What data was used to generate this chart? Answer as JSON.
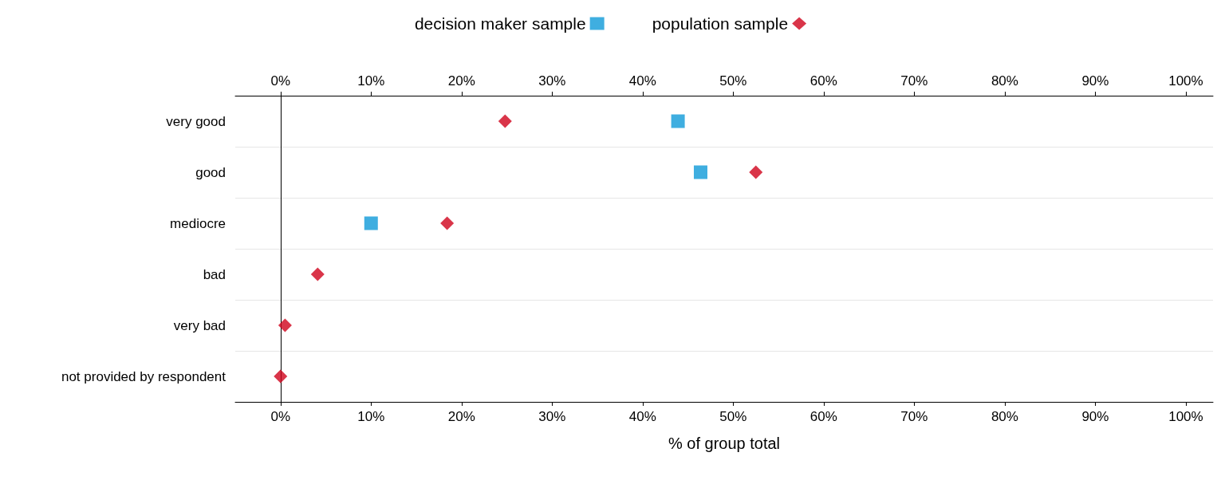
{
  "chart_data": {
    "type": "scatter",
    "orientation": "horizontal",
    "xlabel": "% of group total",
    "categories": [
      "very good",
      "good",
      "mediocre",
      "bad",
      "very bad",
      "not provided by respondent"
    ],
    "series": [
      {
        "name": "decision maker sample",
        "color": "#0f9ad8",
        "marker": "square",
        "values": [
          43.9,
          46.4,
          10.0,
          null,
          null,
          null
        ]
      },
      {
        "name": "population sample",
        "color": "#d0021b",
        "marker": "diamond",
        "values": [
          24.8,
          52.5,
          18.4,
          4.1,
          0.5,
          0
        ]
      }
    ],
    "xlim": [
      -5,
      103
    ],
    "xticks": [
      {
        "value": 0,
        "label": "0%"
      },
      {
        "value": 10,
        "label": "10%"
      },
      {
        "value": 20,
        "label": "20%"
      },
      {
        "value": 30,
        "label": "30%"
      },
      {
        "value": 40,
        "label": "40%"
      },
      {
        "value": 50,
        "label": "50%"
      },
      {
        "value": 60,
        "label": "60%"
      },
      {
        "value": 70,
        "label": "70%"
      },
      {
        "value": 80,
        "label": "80%"
      },
      {
        "value": 90,
        "label": "90%"
      },
      {
        "value": 100,
        "label": "100%"
      }
    ],
    "x2lim": [
      -5,
      103
    ],
    "x2ticks": [
      {
        "value": 0,
        "label": "0%"
      },
      {
        "value": 10,
        "label": "10%"
      },
      {
        "value": 20,
        "label": "20%"
      },
      {
        "value": 30,
        "label": "30%"
      },
      {
        "value": 40,
        "label": "40%"
      },
      {
        "value": 50,
        "label": "50%"
      },
      {
        "value": 60,
        "label": "60%"
      },
      {
        "value": 70,
        "label": "70%"
      },
      {
        "value": 80,
        "label": "80%"
      },
      {
        "value": 90,
        "label": "90%"
      },
      {
        "value": 100,
        "label": "100%"
      }
    ],
    "grid": "y",
    "legend": "top"
  }
}
